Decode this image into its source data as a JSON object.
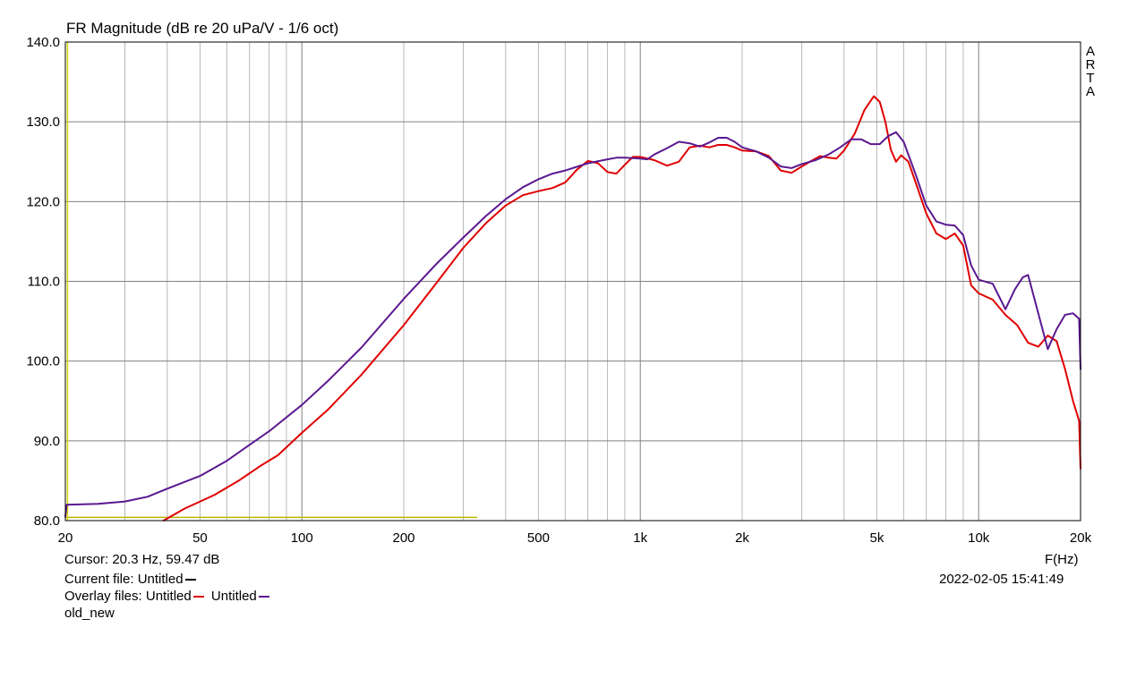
{
  "chart_data": {
    "type": "line",
    "title": "FR Magnitude (dB re 20 uPa/V - 1/6 oct)",
    "xlabel": "F(Hz)",
    "ylabel": "",
    "xscale": "log",
    "xlim": [
      20,
      20000
    ],
    "ylim": [
      80,
      140
    ],
    "grid": true,
    "x_ticks": [
      {
        "value": 20,
        "label": "20"
      },
      {
        "value": 50,
        "label": "50"
      },
      {
        "value": 100,
        "label": "100"
      },
      {
        "value": 200,
        "label": "200"
      },
      {
        "value": 500,
        "label": "500"
      },
      {
        "value": 1000,
        "label": "1k"
      },
      {
        "value": 2000,
        "label": "2k"
      },
      {
        "value": 5000,
        "label": "5k"
      },
      {
        "value": 10000,
        "label": "10k"
      },
      {
        "value": 20000,
        "label": "20k"
      }
    ],
    "y_ticks": [
      {
        "value": 80,
        "label": "80.0"
      },
      {
        "value": 90,
        "label": "90.0"
      },
      {
        "value": 100,
        "label": "100.0"
      },
      {
        "value": 110,
        "label": "110.0"
      },
      {
        "value": 120,
        "label": "120.0"
      },
      {
        "value": 130,
        "label": "130.0"
      },
      {
        "value": 140,
        "label": "140.0"
      }
    ],
    "watermark": "ARTA",
    "series": [
      {
        "color": "#e00000",
        "points": [
          [
            39,
            80
          ],
          [
            45,
            81.5
          ],
          [
            55,
            83.2
          ],
          [
            65,
            85
          ],
          [
            75,
            86.8
          ],
          [
            85,
            88.2
          ],
          [
            100,
            91
          ],
          [
            120,
            94
          ],
          [
            150,
            98.3
          ],
          [
            200,
            104.5
          ],
          [
            250,
            109.8
          ],
          [
            300,
            114.2
          ],
          [
            350,
            117.3
          ],
          [
            400,
            119.5
          ],
          [
            450,
            120.8
          ],
          [
            500,
            121.3
          ],
          [
            550,
            121.7
          ],
          [
            600,
            122.4
          ],
          [
            650,
            124
          ],
          [
            700,
            125.1
          ],
          [
            750,
            124.8
          ],
          [
            800,
            123.7
          ],
          [
            850,
            123.5
          ],
          [
            900,
            124.6
          ],
          [
            950,
            125.6
          ],
          [
            1000,
            125.6
          ],
          [
            1100,
            125.2
          ],
          [
            1200,
            124.5
          ],
          [
            1300,
            125
          ],
          [
            1400,
            126.8
          ],
          [
            1500,
            127
          ],
          [
            1600,
            126.8
          ],
          [
            1700,
            127.1
          ],
          [
            1800,
            127.1
          ],
          [
            1900,
            126.8
          ],
          [
            2000,
            126.4
          ],
          [
            2200,
            126.3
          ],
          [
            2400,
            125.7
          ],
          [
            2600,
            123.9
          ],
          [
            2800,
            123.6
          ],
          [
            3000,
            124.4
          ],
          [
            3200,
            125.1
          ],
          [
            3400,
            125.7
          ],
          [
            3600,
            125.5
          ],
          [
            3800,
            125.4
          ],
          [
            4000,
            126.4
          ],
          [
            4300,
            128.5
          ],
          [
            4600,
            131.5
          ],
          [
            4900,
            133.2
          ],
          [
            5100,
            132.5
          ],
          [
            5300,
            130
          ],
          [
            5500,
            126.5
          ],
          [
            5700,
            125
          ],
          [
            5900,
            125.8
          ],
          [
            6200,
            125
          ],
          [
            6500,
            122.5
          ],
          [
            7000,
            118.5
          ],
          [
            7500,
            116
          ],
          [
            8000,
            115.3
          ],
          [
            8500,
            116
          ],
          [
            9000,
            114.5
          ],
          [
            9500,
            109.5
          ],
          [
            10000,
            108.5
          ],
          [
            11000,
            107.7
          ],
          [
            12000,
            105.8
          ],
          [
            13000,
            104.5
          ],
          [
            14000,
            102.3
          ],
          [
            15000,
            101.8
          ],
          [
            16000,
            103.2
          ],
          [
            17000,
            102.5
          ],
          [
            18000,
            99
          ],
          [
            19000,
            95
          ],
          [
            19800,
            92.5
          ],
          [
            20000,
            86.5
          ]
        ]
      },
      {
        "color": "#5a1890",
        "points": [
          [
            20,
            80.5
          ],
          [
            20.2,
            82
          ],
          [
            25,
            82.1
          ],
          [
            30,
            82.4
          ],
          [
            35,
            83
          ],
          [
            40,
            84
          ],
          [
            50,
            85.6
          ],
          [
            60,
            87.5
          ],
          [
            70,
            89.5
          ],
          [
            80,
            91.2
          ],
          [
            100,
            94.5
          ],
          [
            120,
            97.6
          ],
          [
            150,
            101.7
          ],
          [
            200,
            107.8
          ],
          [
            250,
            112.2
          ],
          [
            300,
            115.5
          ],
          [
            350,
            118.2
          ],
          [
            400,
            120.3
          ],
          [
            450,
            121.8
          ],
          [
            500,
            122.8
          ],
          [
            550,
            123.5
          ],
          [
            600,
            123.9
          ],
          [
            700,
            124.8
          ],
          [
            800,
            125.3
          ],
          [
            850,
            125.5
          ],
          [
            900,
            125.5
          ],
          [
            1000,
            125.4
          ],
          [
            1050,
            125.3
          ],
          [
            1100,
            125.9
          ],
          [
            1200,
            126.7
          ],
          [
            1300,
            127.5
          ],
          [
            1400,
            127.3
          ],
          [
            1500,
            126.9
          ],
          [
            1600,
            127.4
          ],
          [
            1700,
            128
          ],
          [
            1800,
            128
          ],
          [
            1900,
            127.5
          ],
          [
            2000,
            126.8
          ],
          [
            2200,
            126.3
          ],
          [
            2400,
            125.5
          ],
          [
            2600,
            124.4
          ],
          [
            2800,
            124.2
          ],
          [
            3000,
            124.7
          ],
          [
            3300,
            125.2
          ],
          [
            3600,
            125.9
          ],
          [
            3900,
            126.8
          ],
          [
            4200,
            127.8
          ],
          [
            4500,
            127.8
          ],
          [
            4800,
            127.2
          ],
          [
            5100,
            127.2
          ],
          [
            5400,
            128.2
          ],
          [
            5700,
            128.7
          ],
          [
            6000,
            127.5
          ],
          [
            6500,
            123.5
          ],
          [
            7000,
            119.5
          ],
          [
            7500,
            117.5
          ],
          [
            8000,
            117.1
          ],
          [
            8500,
            117
          ],
          [
            9000,
            115.8
          ],
          [
            9500,
            112
          ],
          [
            10000,
            110.2
          ],
          [
            11000,
            109.7
          ],
          [
            12000,
            106.5
          ],
          [
            12800,
            109
          ],
          [
            13500,
            110.5
          ],
          [
            14000,
            110.8
          ],
          [
            15000,
            106
          ],
          [
            16000,
            101.5
          ],
          [
            17000,
            104
          ],
          [
            18000,
            105.8
          ],
          [
            19000,
            106
          ],
          [
            19800,
            105.3
          ],
          [
            20000,
            99
          ]
        ]
      }
    ],
    "markers": [
      {
        "color": "#b8b800",
        "x": [
          20,
          330
        ],
        "y": 80.4
      },
      {
        "color": "#d8d800",
        "x": 20.3,
        "y": [
          80,
          140
        ]
      }
    ]
  },
  "labels": {
    "cursor": "Cursor: 20.3 Hz, 59.47 dB",
    "current_file": "Current file: Untitled",
    "overlay_prefix": "Overlay files: Untitled",
    "overlay_second": "Untitled",
    "note": "old_new",
    "timestamp": "2022-02-05   15:41:49"
  },
  "colors": {
    "current": "#000000",
    "overlay1": "#e00000",
    "overlay2": "#5a1890",
    "grid": "#b8b8b8",
    "major_grid": "#808080",
    "axis": "#000000"
  }
}
